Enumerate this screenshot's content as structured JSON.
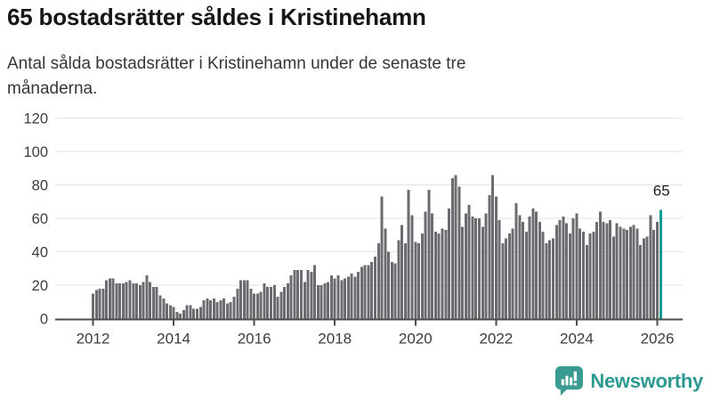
{
  "header": {
    "title": "65 bostadsrätter såldes i Kristinehamn",
    "subtitle_line1": "Antal sålda bostadsrätter i Kristinehamn under de senaste tre",
    "subtitle_line2": "månaderna."
  },
  "chart_data": {
    "type": "bar",
    "title": "65 bostadsrätter såldes i Kristinehamn",
    "subtitle": "Antal sålda bostadsrätter i Kristinehamn under de senaste tre månaderna.",
    "x_unit": "month",
    "x_start": "2012-01",
    "x_end": "2026-02",
    "x_tick_labels": [
      "2012",
      "2014",
      "2016",
      "2018",
      "2020",
      "2022",
      "2024",
      "2026"
    ],
    "y_ticks": [
      0,
      20,
      40,
      60,
      80,
      100,
      120
    ],
    "ylim": [
      0,
      120
    ],
    "grid": true,
    "legend": false,
    "values": [
      15,
      17,
      18,
      18,
      23,
      24,
      24,
      21,
      21,
      21,
      22,
      23,
      21,
      21,
      20,
      22,
      26,
      22,
      19,
      19,
      14,
      12,
      9,
      8,
      7,
      4,
      3,
      5,
      8,
      8,
      6,
      6,
      7,
      11,
      12,
      11,
      12,
      10,
      11,
      12,
      9,
      10,
      13,
      18,
      23,
      23,
      23,
      18,
      15,
      15,
      16,
      21,
      19,
      19,
      20,
      13,
      16,
      19,
      21,
      26,
      29,
      29,
      29,
      22,
      29,
      28,
      32,
      20,
      20,
      21,
      22,
      26,
      24,
      26,
      23,
      24,
      25,
      27,
      25,
      28,
      31,
      32,
      32,
      34,
      37,
      45,
      73,
      54,
      40,
      34,
      33,
      47,
      56,
      45,
      77,
      62,
      46,
      45,
      51,
      64,
      77,
      63,
      52,
      51,
      54,
      53,
      66,
      84,
      86,
      79,
      55,
      63,
      68,
      61,
      60,
      60,
      55,
      63,
      74,
      86,
      73,
      59,
      45,
      48,
      51,
      54,
      69,
      62,
      58,
      52,
      61,
      66,
      64,
      58,
      52,
      45,
      47,
      48,
      56,
      59,
      61,
      57,
      51,
      60,
      63,
      54,
      52,
      44,
      51,
      52,
      58,
      64,
      58,
      57,
      59,
      49,
      57,
      55,
      54,
      53,
      55,
      56,
      54,
      44,
      48,
      49,
      62,
      53,
      58,
      65
    ],
    "highlight_last": true,
    "annotation": {
      "text": "65",
      "value": 65
    },
    "colors": {
      "bar": "#6b6b70",
      "highlight": "#119a94",
      "grid": "#e3e3e3",
      "axis": "#4c4c4c",
      "tick_label": "#3d3d3d",
      "annotation": "#1c1c1c"
    }
  },
  "footer": {
    "brand": "Newsworthy",
    "logo_icon": "bar-chart-speech-bubble-icon",
    "brand_color": "#2d9a92"
  }
}
